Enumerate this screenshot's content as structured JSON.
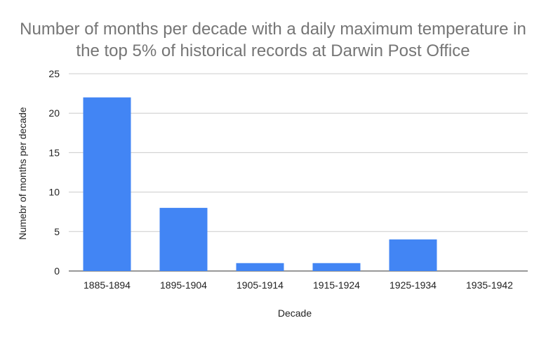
{
  "chart_data": {
    "type": "bar",
    "title_lines": [
      "Number of months per decade with a daily maximum temperature in",
      "the top 5% of historical records at Darwin Post Office"
    ],
    "xlabel": "Decade",
    "ylabel": "Numebr of months per decade",
    "categories": [
      "1885-1894",
      "1895-1904",
      "1905-1914",
      "1915-1924",
      "1925-1934",
      "1935-1942"
    ],
    "values": [
      22,
      8,
      1,
      1,
      4,
      0
    ],
    "ylim": [
      0,
      25
    ],
    "yticks": [
      "0",
      "5",
      "10",
      "15",
      "20",
      "25"
    ],
    "grid": true,
    "bar_color": "#4285f4",
    "grid_color": "#cccccc",
    "title_color": "#757575"
  }
}
